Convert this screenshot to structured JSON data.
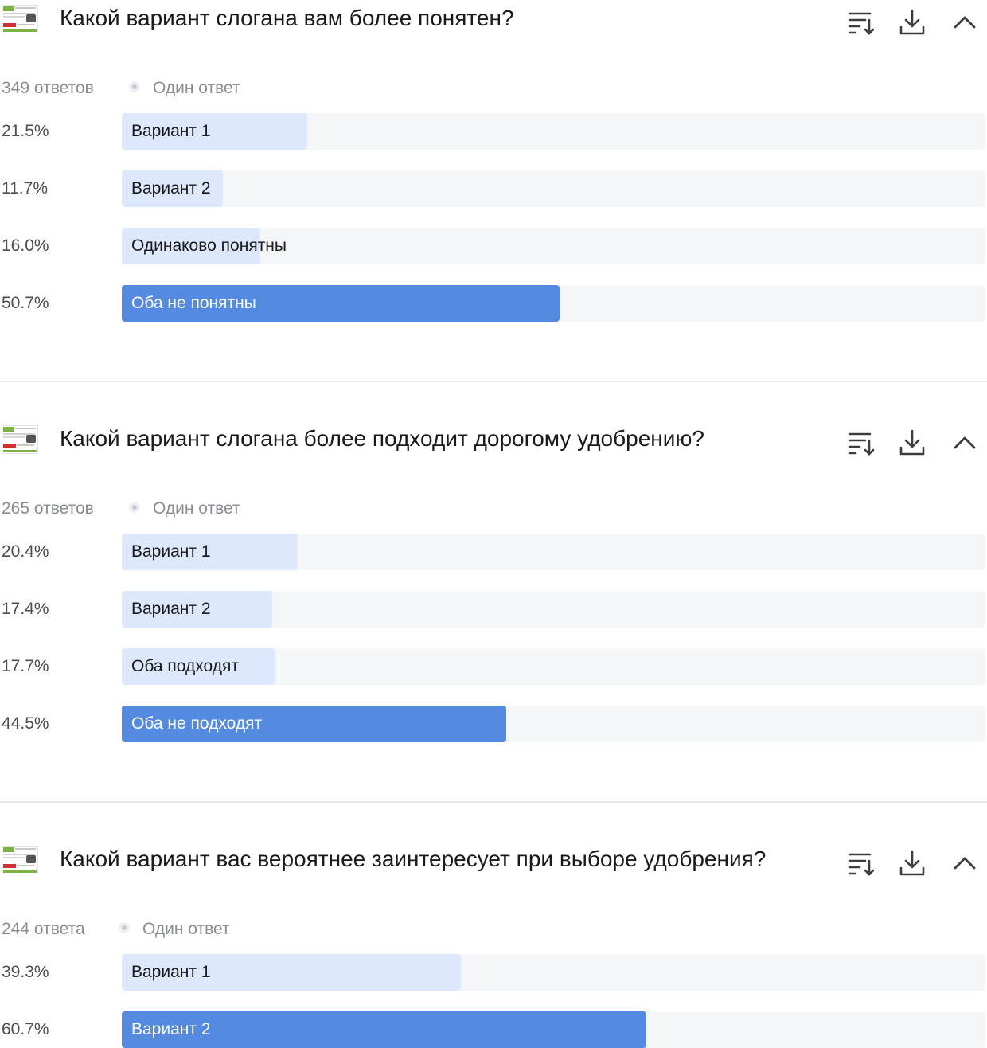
{
  "questions": [
    {
      "title": "Какой вариант слогана вам более понятен?",
      "count_label": "349 ответов",
      "type_label": "Один ответ",
      "options": [
        {
          "pct": "21.5%",
          "label": "Вариант 1",
          "value": 21.5
        },
        {
          "pct": "11.7%",
          "label": "Вариант 2",
          "value": 11.7
        },
        {
          "pct": "16.0%",
          "label": "Одинаково понятны",
          "value": 16.0
        },
        {
          "pct": "50.7%",
          "label": "Оба не понятны",
          "value": 50.7
        }
      ]
    },
    {
      "title": "Какой вариант слогана более подходит дорогому удобрению?",
      "count_label": "265 ответов",
      "type_label": "Один ответ",
      "options": [
        {
          "pct": "20.4%",
          "label": "Вариант 1",
          "value": 20.4
        },
        {
          "pct": "17.4%",
          "label": "Вариант 2",
          "value": 17.4
        },
        {
          "pct": "17.7%",
          "label": "Оба подходят",
          "value": 17.7
        },
        {
          "pct": "44.5%",
          "label": "Оба не подходят",
          "value": 44.5
        }
      ]
    },
    {
      "title": "Какой вариант вас вероятнее заинтересует при выборе удобрения?",
      "count_label": "244 ответа",
      "type_label": "Один ответ",
      "options": [
        {
          "pct": "39.3%",
          "label": "Вариант 1",
          "value": 39.3
        },
        {
          "pct": "60.7%",
          "label": "Вариант 2",
          "value": 60.7
        }
      ]
    }
  ],
  "icons": {
    "sort": "sort-icon",
    "download": "download-icon",
    "collapse": "chevron-up-icon",
    "thumbnail": "product-thumbnail"
  },
  "colors": {
    "top_bar": "#548be0",
    "other_bar": "#dde8fc",
    "track": "#f5f6f8",
    "meta_text": "#8a8d93"
  }
}
